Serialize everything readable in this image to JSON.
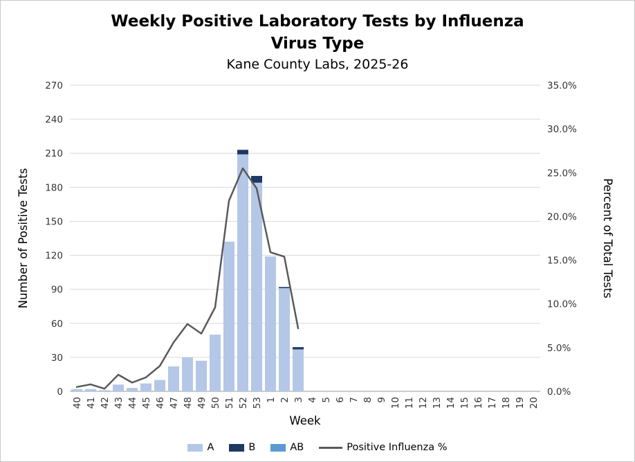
{
  "chart_data": {
    "type": "bar",
    "title": "Weekly Positive Laboratory Tests by Influenza Virus Type",
    "subtitle": "Kane County Labs, 2025-26",
    "xlabel": "Week",
    "ylabel_left": "Number of Positive Tests",
    "ylabel_right": "Percent of Total Tests",
    "axis_left": {
      "min": 0,
      "max": 270,
      "step": 30
    },
    "axis_right": {
      "min": 0,
      "max": 35,
      "step": 5
    },
    "grid": true,
    "legend_position": "bottom",
    "colors": {
      "grid": "#d9d9d9",
      "axis": "#9a9a9a",
      "tick_text": "#333333"
    },
    "categories": [
      "40",
      "41",
      "42",
      "43",
      "44",
      "45",
      "46",
      "47",
      "48",
      "49",
      "50",
      "51",
      "52",
      "53",
      "1",
      "2",
      "3",
      "4",
      "5",
      "6",
      "7",
      "8",
      "9",
      "10",
      "11",
      "12",
      "13",
      "14",
      "15",
      "16",
      "17",
      "18",
      "19",
      "20"
    ],
    "series": [
      {
        "name": "A",
        "color": "#b4c7e7",
        "values": [
          2,
          2,
          1,
          6,
          3,
          7,
          10,
          22,
          30,
          27,
          50,
          132,
          209,
          184,
          119,
          91,
          37,
          0,
          0,
          0,
          0,
          0,
          0,
          0,
          0,
          0,
          0,
          0,
          0,
          0,
          0,
          0,
          0,
          0
        ]
      },
      {
        "name": "B",
        "color": "#1f3864",
        "values": [
          0,
          0,
          0,
          0,
          0,
          0,
          0,
          0,
          0,
          0,
          0,
          0,
          4,
          6,
          0,
          1,
          2,
          0,
          0,
          0,
          0,
          0,
          0,
          0,
          0,
          0,
          0,
          0,
          0,
          0,
          0,
          0,
          0,
          0
        ]
      },
      {
        "name": "AB",
        "color": "#5b9bd5",
        "values": [
          0,
          0,
          0,
          0,
          0,
          0,
          0,
          0,
          0,
          0,
          0,
          0,
          0,
          0,
          0,
          0,
          0,
          0,
          0,
          0,
          0,
          0,
          0,
          0,
          0,
          0,
          0,
          0,
          0,
          0,
          0,
          0,
          0,
          0
        ]
      }
    ],
    "line": {
      "name": "Positive Influenza %",
      "color": "#595959",
      "values": [
        0.5,
        0.8,
        0.3,
        1.9,
        1.0,
        1.6,
        2.9,
        5.6,
        7.7,
        6.6,
        9.6,
        21.8,
        25.5,
        23.2,
        15.9,
        15.4,
        7.2,
        null,
        null,
        null,
        null,
        null,
        null,
        null,
        null,
        null,
        null,
        null,
        null,
        null,
        null,
        null,
        null,
        null
      ]
    }
  }
}
